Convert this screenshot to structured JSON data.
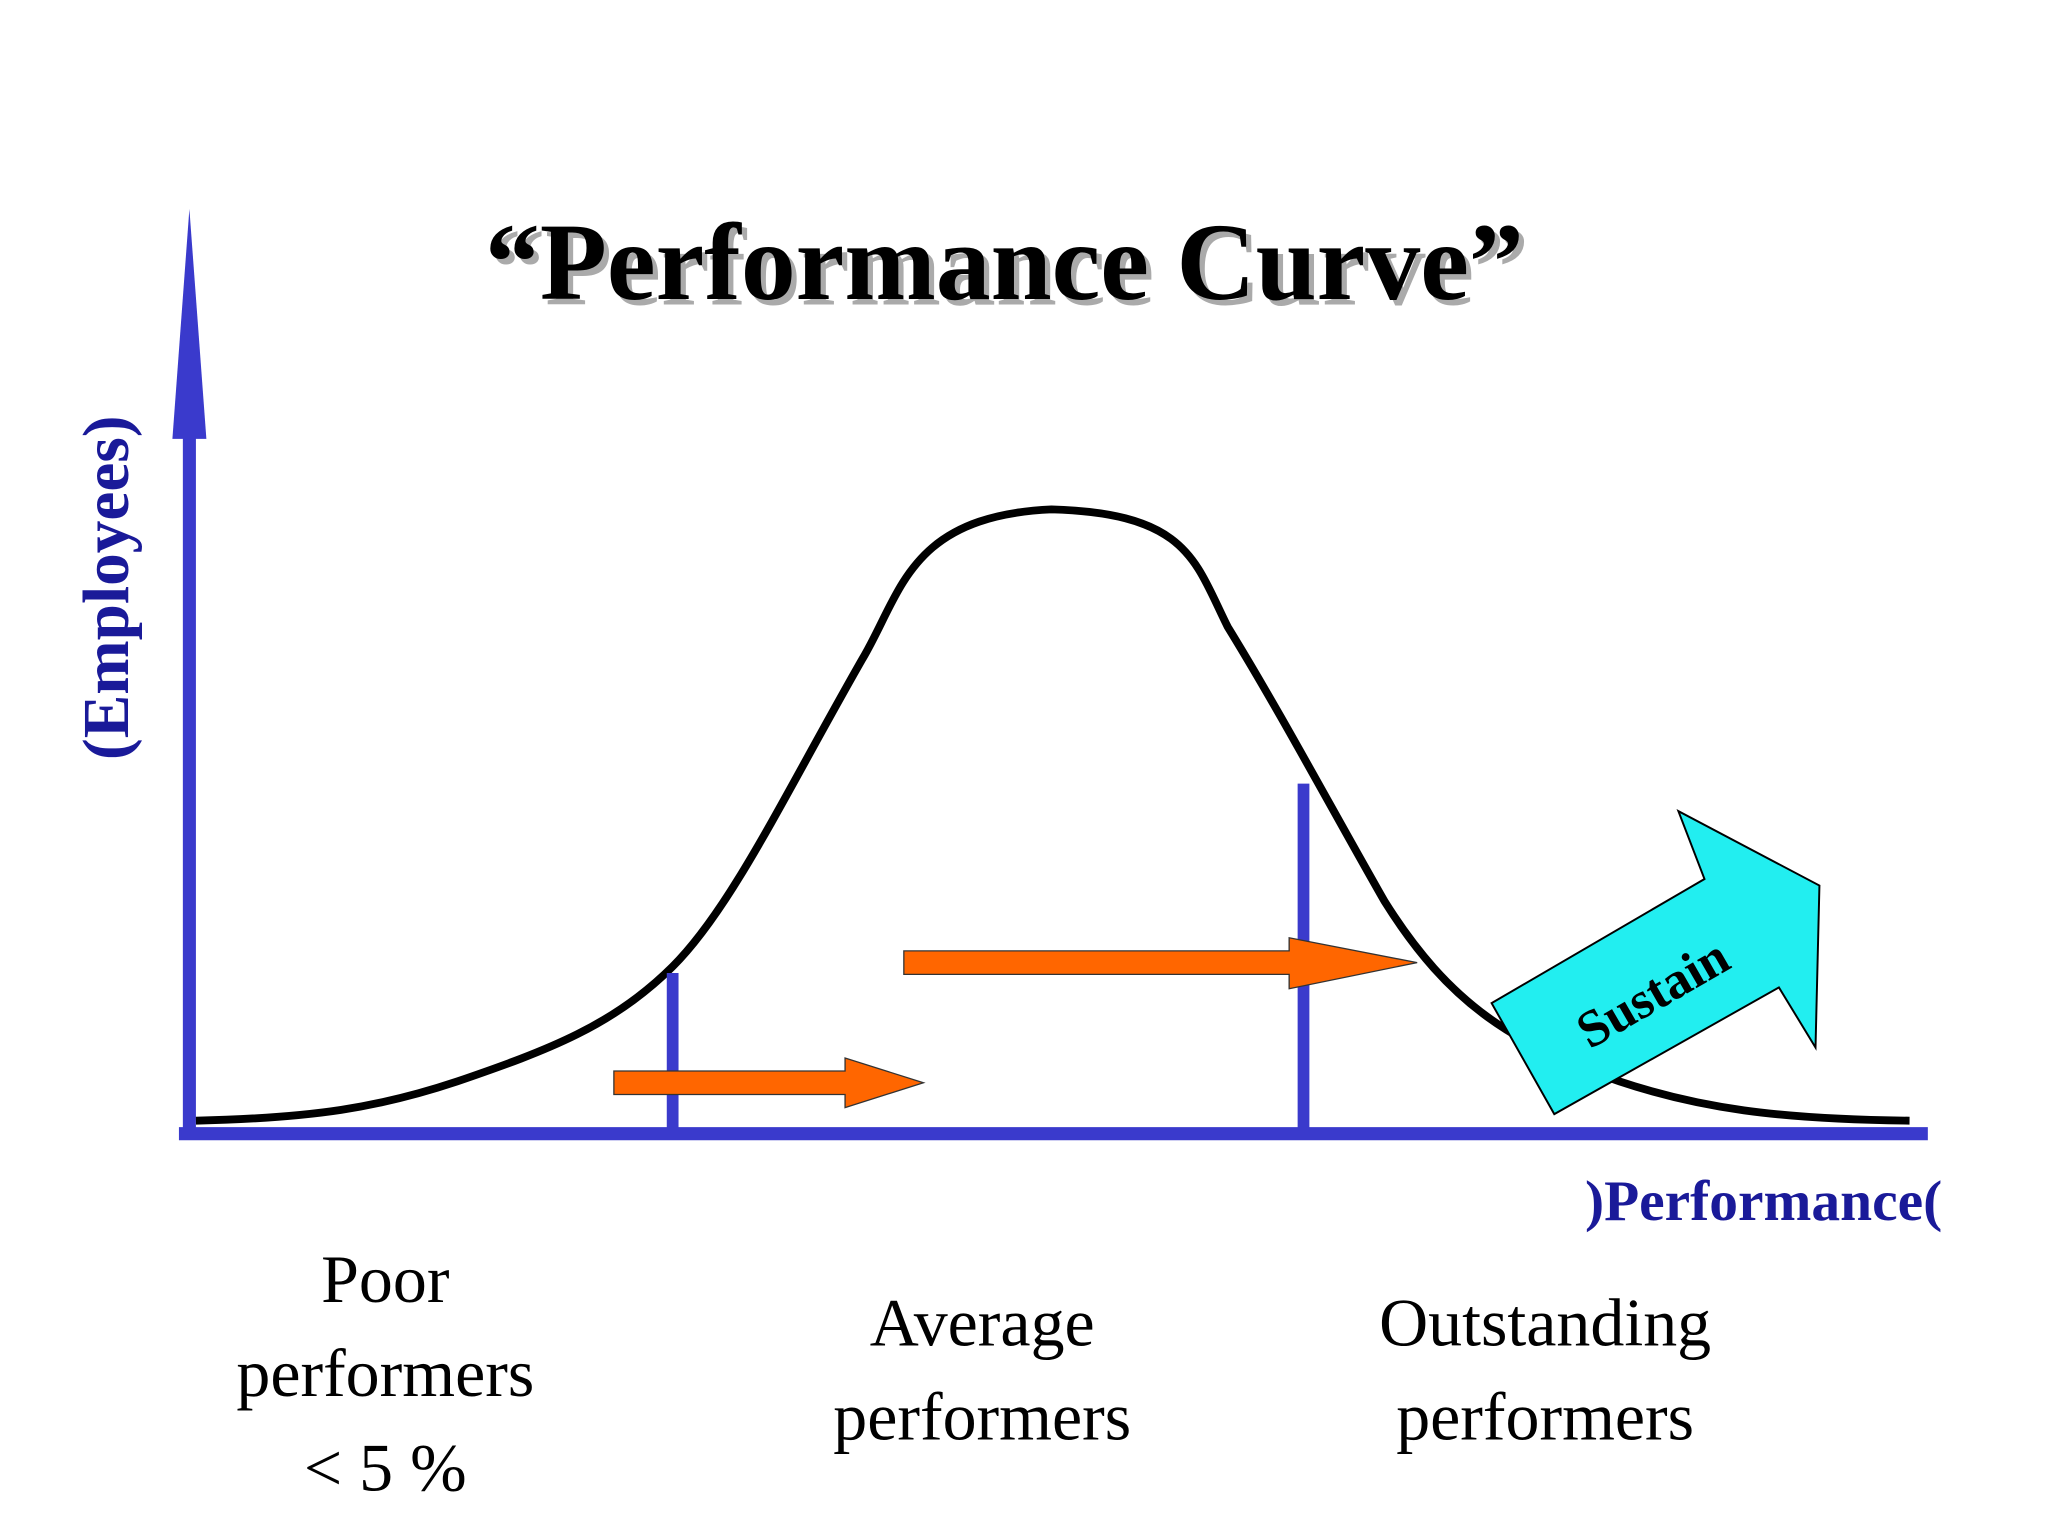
{
  "title": "“Performance Curve”",
  "axes": {
    "y_label": "(Employees)",
    "x_label": ")Performance("
  },
  "groups": [
    {
      "lines": [
        "Poor",
        "performers",
        "< 5 %"
      ]
    },
    {
      "lines": [
        "Average",
        "performers"
      ]
    },
    {
      "lines": [
        "Outstanding",
        "performers"
      ]
    }
  ],
  "arrow_label": "Sustain"
}
